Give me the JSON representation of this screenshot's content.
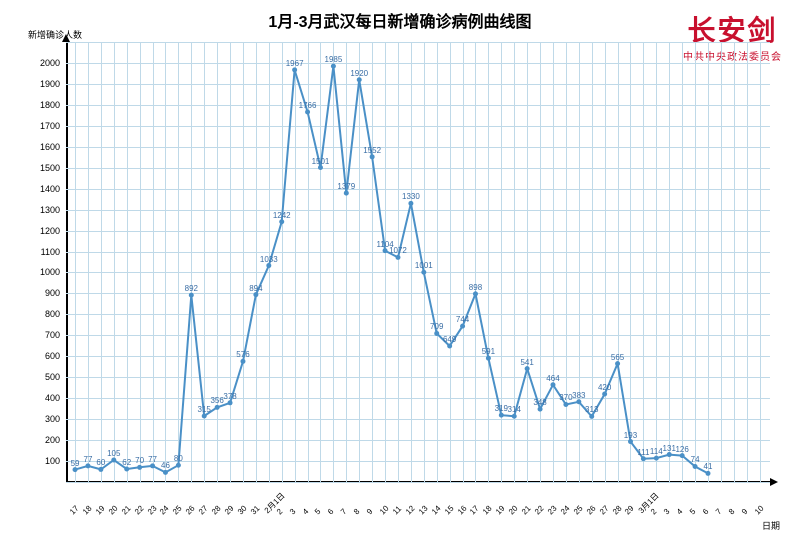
{
  "title": "1月-3月武汉每日新增确诊病例曲线图",
  "logo": {
    "main": "长安剑",
    "sub": "中共中央政法委员会"
  },
  "ylabel": "新增确诊人数",
  "xlabel": "日期",
  "chart": {
    "type": "line",
    "line_color": "#4a90c7",
    "marker_color": "#4a90c7",
    "marker_size": 5,
    "line_width": 2,
    "grid_color": "#bfd9e8",
    "background_color": "#ffffff",
    "label_color": "#3a6ea5",
    "axis_color": "#000000",
    "ylim": [
      0,
      2100
    ],
    "ytick_step": 100,
    "label_fontsize": 8,
    "categories": [
      "17",
      "18",
      "19",
      "20",
      "21",
      "22",
      "23",
      "24",
      "25",
      "26",
      "27",
      "28",
      "29",
      "30",
      "31",
      "2月1日",
      "2",
      "3",
      "4",
      "5",
      "6",
      "7",
      "8",
      "9",
      "10",
      "11",
      "12",
      "13",
      "14",
      "15",
      "16",
      "17",
      "18",
      "19",
      "20",
      "21",
      "22",
      "23",
      "24",
      "25",
      "26",
      "27",
      "28",
      "29",
      "3月1日",
      "2",
      "3",
      "4",
      "5",
      "6",
      "7",
      "8",
      "9",
      "10"
    ],
    "values": [
      59,
      77,
      60,
      105,
      62,
      70,
      77,
      46,
      80,
      892,
      315,
      356,
      378,
      576,
      894,
      1033,
      1242,
      1967,
      1766,
      1501,
      1985,
      1379,
      1920,
      1552,
      1104,
      1072,
      1330,
      1001,
      709,
      649,
      744,
      898,
      591,
      319,
      314,
      541,
      348,
      464,
      370,
      383,
      313,
      420,
      565,
      193,
      111,
      114,
      131,
      126,
      74,
      41,
      null,
      null,
      null,
      null
    ]
  }
}
